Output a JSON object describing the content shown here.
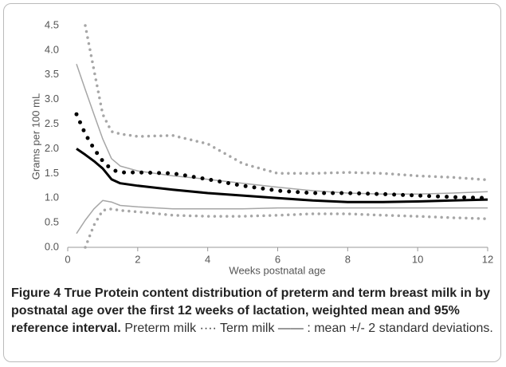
{
  "chart_data": {
    "type": "line",
    "y_label": "Grams per 100 mL",
    "x_label": "Weeks postnatal age",
    "caption_title": "Figure 4 True Protein content distribution of preterm and term breast milk in by postnatal age over the first 12 weeks of lactation, weighted mean and 95% reference interval.",
    "caption_text": "Preterm milk ···· Term milk —— : mean +/- 2 standard deviations.",
    "x": [
      0.25,
      0.5,
      0.75,
      1,
      1.25,
      1.5,
      2,
      3,
      4,
      5,
      6,
      7,
      8,
      9,
      10,
      11,
      12
    ],
    "xlim": [
      0,
      12
    ],
    "xticks": [
      0,
      2,
      4,
      6,
      8,
      10,
      12
    ],
    "ylim": [
      0,
      4.5
    ],
    "yticks": [
      {
        "value": 0,
        "label": "0.0"
      },
      0.5,
      {
        "value": 1,
        "label": "1.0"
      },
      1.5,
      {
        "value": 2,
        "label": "2.0"
      },
      2.5,
      {
        "value": 3,
        "label": "3.0"
      },
      3.5,
      {
        "value": 4,
        "label": "4.0"
      },
      4.5
    ],
    "grid": false,
    "series": [
      {
        "color": "#a6a6a6",
        "style": "solid",
        "width": 1.5,
        "values": [
          3.72,
          3.2,
          2.7,
          2.2,
          1.8,
          1.65,
          1.55,
          1.45,
          1.38,
          1.3,
          1.22,
          1.15,
          1.1,
          1.08,
          1.08,
          1.1,
          1.13
        ]
      },
      {
        "color": "#a6a6a6",
        "style": "solid",
        "width": 1.5,
        "values": [
          0.28,
          0.55,
          0.78,
          0.95,
          0.92,
          0.85,
          0.82,
          0.78,
          0.78,
          0.78,
          0.8,
          0.8,
          0.8,
          0.8,
          0.8,
          0.8,
          0.8
        ]
      },
      {
        "color": "#a6a6a6",
        "style": "dotted",
        "width": 3.5,
        "values": [
          null,
          4.5,
          3.6,
          2.7,
          2.35,
          2.3,
          2.25,
          2.27,
          2.1,
          1.7,
          1.5,
          1.5,
          1.52,
          1.5,
          1.45,
          1.42,
          1.37
        ]
      },
      {
        "color": "#a6a6a6",
        "style": "dotted",
        "width": 3.5,
        "values": [
          null,
          0.0,
          0.45,
          0.75,
          0.78,
          0.75,
          0.72,
          0.65,
          0.63,
          0.63,
          0.65,
          0.68,
          0.68,
          0.65,
          0.63,
          0.6,
          0.58
        ]
      },
      {
        "color": "#000000",
        "style": "solid",
        "width": 3,
        "values": [
          2.0,
          1.88,
          1.75,
          1.6,
          1.38,
          1.3,
          1.25,
          1.17,
          1.1,
          1.05,
          1.0,
          0.95,
          0.92,
          0.92,
          0.93,
          0.95,
          0.97
        ]
      },
      {
        "color": "#000000",
        "style": "dotted",
        "width": 5,
        "values": [
          2.7,
          2.3,
          2.0,
          1.75,
          1.58,
          1.52,
          1.52,
          1.5,
          1.38,
          1.25,
          1.15,
          1.1,
          1.1,
          1.08,
          1.05,
          1.02,
          1.0
        ]
      }
    ]
  }
}
